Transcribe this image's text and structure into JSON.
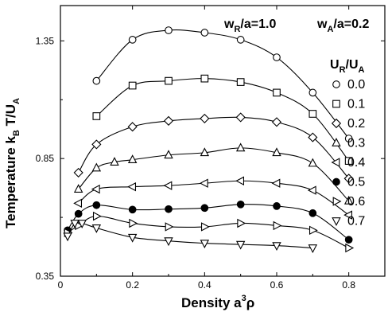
{
  "chart_data": {
    "type": "line",
    "xlabel": "Density a",
    "xlabel_sup": "3",
    "xlabel_tail": "ρ",
    "ylabel": "Temperature k",
    "ylabel_sub": "B",
    "ylabel_tail": " T/U",
    "ylabel_sub2": "A",
    "xlim": [
      0,
      0.9
    ],
    "ylim": [
      0.35,
      1.5
    ],
    "x_ticks": [
      {
        "value": 0,
        "label": "0"
      },
      {
        "value": 0.2,
        "label": "0.2"
      },
      {
        "value": 0.4,
        "label": "0.4"
      },
      {
        "value": 0.6,
        "label": "0.6"
      },
      {
        "value": 0.8,
        "label": "0.8"
      }
    ],
    "y_ticks": [
      {
        "value": 0.35,
        "label": "0.35"
      },
      {
        "value": 0.85,
        "label": "0.85"
      },
      {
        "value": 1.35,
        "label": "1.35"
      }
    ],
    "annotations": [
      {
        "text": "w",
        "sub": "R",
        "tail": "/a=1.0"
      },
      {
        "text": "w",
        "sub": "A",
        "tail": "/a=0.2"
      }
    ],
    "legend": {
      "title": "U",
      "title_sub": "R",
      "title_tail": "/U",
      "title_sub2": "A",
      "placement": "right"
    },
    "series": [
      {
        "name": "0.0",
        "marker": "circle-open",
        "x": [
          0.1,
          0.2,
          0.3,
          0.4,
          0.5,
          0.6,
          0.7,
          0.8
        ],
        "y": [
          1.18,
          1.355,
          1.395,
          1.385,
          1.355,
          1.28,
          1.13,
          0.935
        ]
      },
      {
        "name": "0.1",
        "marker": "square-open",
        "x": [
          0.1,
          0.2,
          0.3,
          0.4,
          0.5,
          0.6,
          0.7,
          0.8
        ],
        "y": [
          1.03,
          1.16,
          1.18,
          1.19,
          1.175,
          1.13,
          1.04,
          0.84
        ]
      },
      {
        "name": "0.2",
        "marker": "diamond-open",
        "x": [
          0.05,
          0.1,
          0.2,
          0.3,
          0.4,
          0.5,
          0.6,
          0.7,
          0.8
        ],
        "y": [
          0.79,
          0.91,
          0.985,
          1.01,
          1.02,
          1.025,
          1.005,
          0.94,
          0.765
        ]
      },
      {
        "name": "0.3",
        "marker": "triangle-up-open",
        "x": [
          0.05,
          0.1,
          0.15,
          0.2,
          0.3,
          0.4,
          0.5,
          0.6,
          0.7,
          0.8
        ],
        "y": [
          0.72,
          0.81,
          0.835,
          0.845,
          0.865,
          0.875,
          0.895,
          0.875,
          0.83,
          0.67
        ]
      },
      {
        "name": "0.4",
        "marker": "triangle-left-open",
        "x": [
          0.05,
          0.1,
          0.2,
          0.3,
          0.4,
          0.5,
          0.6,
          0.7,
          0.8
        ],
        "y": [
          0.66,
          0.72,
          0.73,
          0.735,
          0.745,
          0.755,
          0.745,
          0.715,
          0.61
        ]
      },
      {
        "name": "0.5",
        "marker": "circle-filled",
        "x": [
          0.02,
          0.05,
          0.1,
          0.2,
          0.3,
          0.4,
          0.5,
          0.6,
          0.7,
          0.8
        ],
        "y": [
          0.545,
          0.615,
          0.652,
          0.633,
          0.635,
          0.64,
          0.655,
          0.648,
          0.618,
          0.505
        ]
      },
      {
        "name": "0.6",
        "marker": "triangle-right-open",
        "x": [
          0.02,
          0.05,
          0.1,
          0.2,
          0.3,
          0.4,
          0.5,
          0.6,
          0.7,
          0.8
        ],
        "y": [
          0.535,
          0.565,
          0.605,
          0.575,
          0.56,
          0.56,
          0.575,
          0.565,
          0.545,
          0.47
        ]
      },
      {
        "name": "0.7",
        "marker": "triangle-down-open",
        "x": [
          0.02,
          0.04,
          0.06,
          0.1,
          0.2,
          0.3,
          0.4,
          0.5,
          0.6,
          0.7
        ],
        "y": [
          0.52,
          0.575,
          0.575,
          0.555,
          0.515,
          0.5,
          0.49,
          0.485,
          0.48,
          0.47
        ]
      }
    ]
  }
}
